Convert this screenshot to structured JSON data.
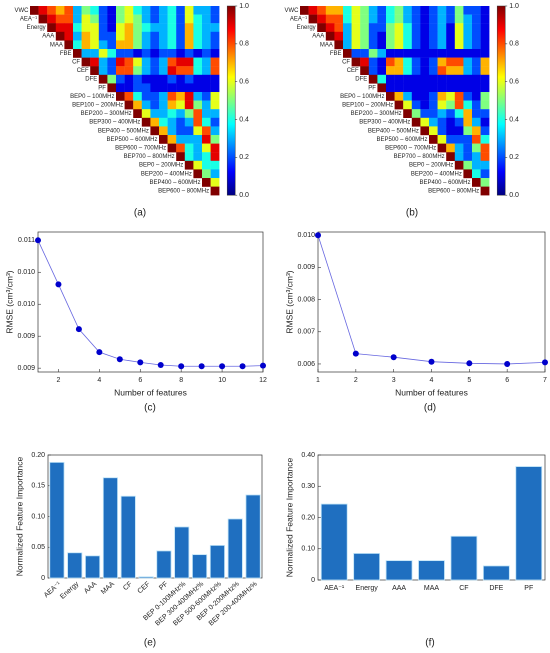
{
  "chart_data": [
    {
      "type": "heatmap",
      "panel": "(a)",
      "colormap": "jet",
      "labels": [
        "VWC",
        "AEA⁻¹",
        "Energy",
        "AAA",
        "MAA",
        "FBE",
        "CF",
        "CEF",
        "DFE",
        "PF",
        "BEP0 – 100MHz",
        "BEP100 – 200MHz",
        "BEP200 – 300MHz",
        "BEP300 – 400MHz",
        "BEP400 – 500MHz",
        "BEP500 – 600MHz",
        "BEP600 – 700MHz",
        "BEP700 – 800MHz",
        "BEP0 – 200MHz",
        "BEP200 – 400MHz",
        "BEP400 – 600MHz",
        "BEP600 – 800MHz"
      ],
      "values": [
        [
          1,
          0.9,
          0.8,
          0.7,
          0.8,
          0.3,
          0.5,
          0.4,
          0.2,
          0.1,
          0.5,
          0.6,
          0.4,
          0.3,
          0.2,
          0.3,
          0.4,
          0.2,
          0.6,
          0.3,
          0.3,
          0.2
        ],
        [
          1,
          0.9,
          0.8,
          0.8,
          0.3,
          0.6,
          0.5,
          0.2,
          0.1,
          0.5,
          0.6,
          0.5,
          0.3,
          0.2,
          0.3,
          0.4,
          0.2,
          0.6,
          0.4,
          0.3,
          0.2
        ],
        [
          1,
          0.9,
          0.9,
          0.4,
          0.6,
          0.6,
          0.2,
          0.1,
          0.6,
          0.7,
          0.5,
          0.4,
          0.3,
          0.3,
          0.4,
          0.2,
          0.7,
          0.4,
          0.3,
          0.3
        ],
        [
          1,
          0.9,
          0.3,
          0.7,
          0.6,
          0.2,
          0.2,
          0.6,
          0.7,
          0.5,
          0.3,
          0.2,
          0.3,
          0.4,
          0.2,
          0.7,
          0.4,
          0.3,
          0.2
        ],
        [
          1,
          0.4,
          0.7,
          0.6,
          0.3,
          0.2,
          0.7,
          0.7,
          0.5,
          0.3,
          0.2,
          0.3,
          0.4,
          0.2,
          0.7,
          0.4,
          0.3,
          0.2
        ],
        [
          1,
          0.3,
          0.3,
          0.6,
          0.4,
          0.2,
          0.2,
          0.1,
          0.2,
          0.1,
          0.2,
          0.2,
          0.1,
          0.2,
          0.1,
          0.2,
          0.1
        ],
        [
          1,
          0.9,
          0.3,
          0.2,
          0.9,
          0.8,
          0.6,
          0.3,
          0.2,
          0.3,
          0.8,
          0.9,
          0.9,
          0.4,
          0.3,
          0.8
        ],
        [
          1,
          0.3,
          0.2,
          0.8,
          0.8,
          0.5,
          0.3,
          0.2,
          0.3,
          0.9,
          0.8,
          0.8,
          0.4,
          0.3,
          0.8
        ],
        [
          1,
          0.5,
          0.2,
          0.1,
          0.2,
          0.1,
          0.1,
          0.1,
          0.2,
          0.1,
          0.2,
          0.1,
          0.1,
          0.1
        ],
        [
          1,
          0.1,
          0.1,
          0.2,
          0.2,
          0.1,
          0.1,
          0.1,
          0.1,
          0.1,
          0.1,
          0.1,
          0.1
        ],
        [
          1,
          0.8,
          0.4,
          0.2,
          0.2,
          0.3,
          0.8,
          0.7,
          0.9,
          0.3,
          0.2,
          0.6
        ],
        [
          1,
          0.7,
          0.3,
          0.2,
          0.3,
          0.7,
          0.6,
          0.9,
          0.5,
          0.3,
          0.6
        ],
        [
          1,
          0.6,
          0.3,
          0.3,
          0.4,
          0.3,
          0.5,
          0.8,
          0.3,
          0.3
        ],
        [
          1,
          0.7,
          0.4,
          0.3,
          0.2,
          0.3,
          0.8,
          0.4,
          0.2
        ],
        [
          1,
          0.7,
          0.3,
          0.2,
          0.2,
          0.6,
          0.8,
          0.3
        ],
        [
          1,
          0.7,
          0.3,
          0.3,
          0.3,
          0.9,
          0.5
        ],
        [
          1,
          0.8,
          0.4,
          0.3,
          0.6,
          0.9
        ],
        [
          1,
          0.4,
          0.3,
          0.4,
          0.9
        ],
        [
          1,
          0.6,
          0.4,
          0.4
        ],
        [
          1,
          0.5,
          0.3
        ],
        [
          1,
          0.6
        ],
        [
          1
        ]
      ],
      "clim": [
        0,
        1
      ],
      "cticks": [
        {
          "value": 0,
          "label": "0.0"
        },
        0.2,
        0.4,
        0.6,
        0.8,
        {
          "value": 1,
          "label": "1.0"
        }
      ]
    },
    {
      "type": "heatmap",
      "panel": "(b)",
      "colormap": "jet",
      "labels": [
        "VWC",
        "AEA⁻¹",
        "Energy",
        "AAA",
        "MAA",
        "FBE",
        "CF",
        "CEF",
        "DFE",
        "PF",
        "BEP0 – 100MHz",
        "BEP100 – 200MHz",
        "BEP200 – 300MHz",
        "BEP300 – 400MHz",
        "BEP400 – 500MHz",
        "BEP500 – 600MHz",
        "BEP600 – 700MHz",
        "BEP700 – 800MHz",
        "BEP0 – 200MHz",
        "BEP200 – 400MHz",
        "BEP400 – 600MHz",
        "BEP600 – 800MHz"
      ],
      "values": [
        [
          1,
          0.9,
          0.8,
          0.7,
          0.7,
          0.4,
          0.6,
          0.5,
          0.3,
          0.2,
          0.4,
          0.5,
          0.3,
          0.2,
          0.1,
          0.2,
          0.3,
          0.2,
          0.5,
          0.2,
          0.2,
          0.1
        ],
        [
          1,
          0.9,
          0.8,
          0.8,
          0.4,
          0.6,
          0.5,
          0.3,
          0.2,
          0.4,
          0.5,
          0.3,
          0.2,
          0.1,
          0.2,
          0.3,
          0.2,
          0.5,
          0.3,
          0.2,
          0.1
        ],
        [
          1,
          0.9,
          0.8,
          0.3,
          0.6,
          0.5,
          0.2,
          0.2,
          0.5,
          0.6,
          0.4,
          0.2,
          0.1,
          0.2,
          0.3,
          0.1,
          0.6,
          0.3,
          0.2,
          0.1
        ],
        [
          1,
          0.9,
          0.3,
          0.6,
          0.5,
          0.2,
          0.1,
          0.5,
          0.6,
          0.4,
          0.2,
          0.1,
          0.2,
          0.3,
          0.1,
          0.6,
          0.3,
          0.2,
          0.1
        ],
        [
          1,
          0.3,
          0.6,
          0.5,
          0.2,
          0.1,
          0.5,
          0.6,
          0.4,
          0.2,
          0.1,
          0.2,
          0.3,
          0.1,
          0.6,
          0.3,
          0.2,
          0.1
        ],
        [
          1,
          0.2,
          0.2,
          0.5,
          0.3,
          0.1,
          0.1,
          0.1,
          0.1,
          0.1,
          0.1,
          0.1,
          0.1,
          0.1,
          0.1,
          0.1,
          0.1
        ],
        [
          1,
          0.9,
          0.2,
          0.1,
          0.8,
          0.7,
          0.4,
          0.2,
          0.1,
          0.2,
          0.7,
          0.8,
          0.8,
          0.3,
          0.2,
          0.7
        ],
        [
          1,
          0.2,
          0.1,
          0.7,
          0.7,
          0.4,
          0.2,
          0.1,
          0.2,
          0.8,
          0.7,
          0.7,
          0.3,
          0.2,
          0.7
        ],
        [
          1,
          0.4,
          0.1,
          0.1,
          0.1,
          0.1,
          0.1,
          0.1,
          0.1,
          0.1,
          0.1,
          0.1,
          0.1,
          0.1
        ],
        [
          1,
          0.1,
          0.1,
          0.1,
          0.1,
          0.1,
          0.1,
          0.1,
          0.1,
          0.1,
          0.1,
          0.1,
          0.1
        ],
        [
          1,
          0.7,
          0.3,
          0.1,
          0.1,
          0.2,
          0.7,
          0.6,
          0.8,
          0.2,
          0.1,
          0.5
        ],
        [
          1,
          0.6,
          0.2,
          0.1,
          0.2,
          0.6,
          0.5,
          0.8,
          0.4,
          0.2,
          0.5
        ],
        [
          1,
          0.5,
          0.2,
          0.2,
          0.3,
          0.2,
          0.4,
          0.7,
          0.2,
          0.2
        ],
        [
          1,
          0.6,
          0.3,
          0.2,
          0.1,
          0.2,
          0.7,
          0.3,
          0.1
        ],
        [
          1,
          0.6,
          0.2,
          0.1,
          0.1,
          0.5,
          0.7,
          0.2
        ],
        [
          1,
          0.6,
          0.2,
          0.2,
          0.2,
          0.8,
          0.4
        ],
        [
          1,
          0.7,
          0.3,
          0.2,
          0.5,
          0.8
        ],
        [
          1,
          0.3,
          0.2,
          0.3,
          0.8
        ],
        [
          1,
          0.5,
          0.3,
          0.3
        ],
        [
          1,
          0.4,
          0.2
        ],
        [
          1,
          0.5
        ],
        [
          1
        ]
      ],
      "clim": [
        0,
        1
      ],
      "cticks": [
        {
          "value": 0,
          "label": "0.0"
        },
        0.2,
        0.4,
        0.6,
        0.8,
        {
          "value": 1,
          "label": "1.0"
        }
      ]
    },
    {
      "type": "line",
      "panel": "(c)",
      "color": "#0000cc",
      "xlabel": "Number of features",
      "ylabel": "RMSE (cm³/cm³)",
      "x": [
        1,
        2,
        3,
        4,
        5,
        6,
        7,
        8,
        9,
        10,
        11,
        12
      ],
      "values": [
        0.011,
        0.01031,
        0.00961,
        0.00925,
        0.00914,
        0.00909,
        0.00905,
        0.00903,
        0.00903,
        0.00903,
        0.00903,
        0.00904
      ],
      "xlim": [
        1,
        12
      ],
      "xticks": [
        2,
        4,
        6,
        8,
        10,
        12
      ],
      "ylim": [
        0.00894,
        0.01113
      ],
      "yticks": [
        {
          "value": 0.009,
          "label": "0.009"
        },
        {
          "value": 0.0095,
          "label": "0.009"
        },
        {
          "value": 0.01,
          "label": "0.010"
        },
        {
          "value": 0.0105,
          "label": "0.010"
        },
        {
          "value": 0.011,
          "label": "0.011"
        }
      ]
    },
    {
      "type": "line",
      "panel": "(d)",
      "color": "#0000cc",
      "xlabel": "Number of features",
      "ylabel": "RMSE (cm³/cm³)",
      "x": [
        1,
        2,
        3,
        4,
        5,
        6,
        7
      ],
      "values": [
        0.01,
        0.00632,
        0.00621,
        0.00607,
        0.00602,
        0.006,
        0.00605
      ],
      "xlim": [
        1,
        7
      ],
      "xticks": [
        1,
        2,
        3,
        4,
        5,
        6,
        7
      ],
      "ylim": [
        0.00575,
        0.0101
      ],
      "yticks": [
        0.006,
        0.007,
        0.008,
        0.009,
        {
          "value": 0.01,
          "label": "0.010"
        }
      ]
    },
    {
      "type": "bar",
      "panel": "(e)",
      "color": "#1f6fc0",
      "ylabel": "Normalized Feature Importance",
      "categories": [
        "AEA⁻¹",
        "Energy",
        "AAA",
        "MAA",
        "CF",
        "CEF",
        "PF",
        "BEP 0-100MHz%",
        "BEP 300-400MHz%",
        "BEP 500-600MHz%",
        "BEP 0-200MHz%",
        "BEP 200-400MHz%"
      ],
      "values": [
        0.188,
        0.041,
        0.036,
        0.163,
        0.133,
        0.002,
        0.044,
        0.083,
        0.038,
        0.053,
        0.096,
        0.135
      ],
      "ylim": [
        0,
        0.2
      ],
      "yticks": [
        0,
        0.05,
        {
          "value": 0.1,
          "label": "0.10"
        },
        0.15,
        {
          "value": 0.2,
          "label": "0.20"
        }
      ]
    },
    {
      "type": "bar",
      "panel": "(f)",
      "color": "#1f6fc0",
      "ylabel": "Normalized Feature Importance",
      "categories": [
        "AEA⁻¹",
        "Energy",
        "AAA",
        "MAA",
        "CF",
        "DFE",
        "PF"
      ],
      "values": [
        0.243,
        0.085,
        0.062,
        0.062,
        0.14,
        0.045,
        0.363
      ],
      "ylim": [
        0,
        0.4
      ],
      "yticks": [
        0,
        {
          "value": 0.1,
          "label": "0.10"
        },
        {
          "value": 0.2,
          "label": "0.20"
        },
        {
          "value": 0.3,
          "label": "0.30"
        },
        {
          "value": 0.4,
          "label": "0.40"
        }
      ]
    }
  ]
}
